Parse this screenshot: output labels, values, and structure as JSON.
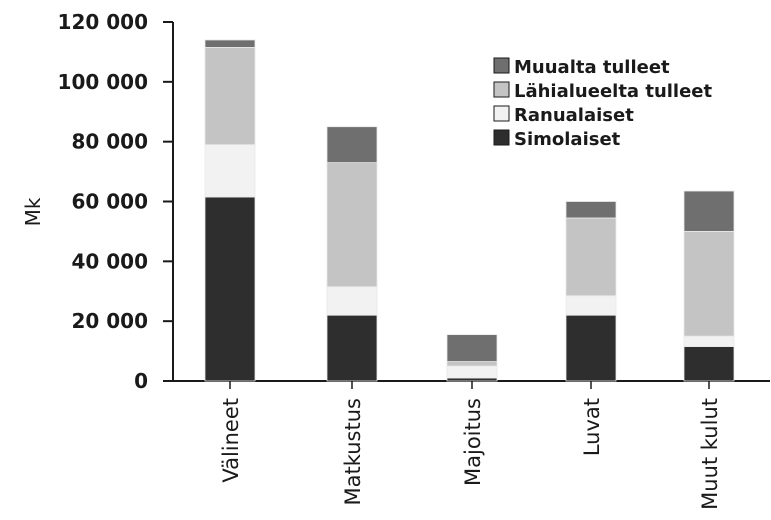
{
  "chart_data": {
    "type": "bar",
    "stacked": true,
    "categories": [
      "Välineet",
      "Matkustus",
      "Majoitus",
      "Luvat",
      "Muut kulut"
    ],
    "series": [
      {
        "name": "Simolaiset",
        "color": "#2e2e2e",
        "values": [
          61500,
          22000,
          1000,
          22000,
          11500
        ]
      },
      {
        "name": "Ranualaiset",
        "color": "#f2f2f2",
        "values": [
          17500,
          9500,
          4000,
          6500,
          3500
        ]
      },
      {
        "name": "Lähialueelta tulleet",
        "color": "#c4c4c4",
        "values": [
          32500,
          41500,
          1500,
          26000,
          35000
        ]
      },
      {
        "name": "Muualta tulleet",
        "color": "#6f6f6f",
        "values": [
          2500,
          12000,
          9000,
          5500,
          13500
        ]
      }
    ],
    "legend_order": [
      "Muualta tulleet",
      "Lähialueelta tulleet",
      "Ranualaiset",
      "Simolaiset"
    ],
    "yticks": [
      "0",
      "20 000",
      "40 000",
      "60 000",
      "80 000",
      "100 000",
      "120 000"
    ],
    "ylabel": "Mk",
    "xlabel": "",
    "ylim": [
      0,
      120000
    ],
    "grid": false,
    "legend_position": "top-right"
  }
}
